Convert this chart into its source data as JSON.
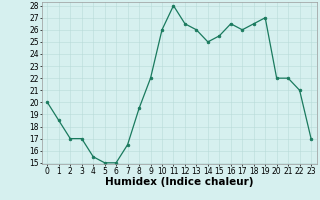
{
  "x": [
    0,
    1,
    2,
    3,
    4,
    5,
    6,
    7,
    8,
    9,
    10,
    11,
    12,
    13,
    14,
    15,
    16,
    17,
    18,
    19,
    20,
    21,
    22,
    23
  ],
  "y": [
    20,
    18.5,
    17,
    17,
    15.5,
    15,
    15,
    16.5,
    19.5,
    22,
    26,
    28,
    26.5,
    26,
    25,
    25.5,
    26.5,
    26,
    26.5,
    27,
    22,
    22,
    21,
    17
  ],
  "line_color": "#1a7a5e",
  "marker_color": "#1a7a5e",
  "bg_color": "#d6f0ef",
  "grid_color": "#b8dbd8",
  "xlabel": "Humidex (Indice chaleur)",
  "ylim": [
    15,
    28
  ],
  "xlim": [
    -0.5,
    23.5
  ],
  "yticks": [
    15,
    16,
    17,
    18,
    19,
    20,
    21,
    22,
    23,
    24,
    25,
    26,
    27,
    28
  ],
  "xticks": [
    0,
    1,
    2,
    3,
    4,
    5,
    6,
    7,
    8,
    9,
    10,
    11,
    12,
    13,
    14,
    15,
    16,
    17,
    18,
    19,
    20,
    21,
    22,
    23
  ],
  "tick_fontsize": 5.5,
  "xlabel_fontsize": 7.5,
  "xlabel_bold": true,
  "linewidth": 0.9,
  "markersize": 2.0
}
